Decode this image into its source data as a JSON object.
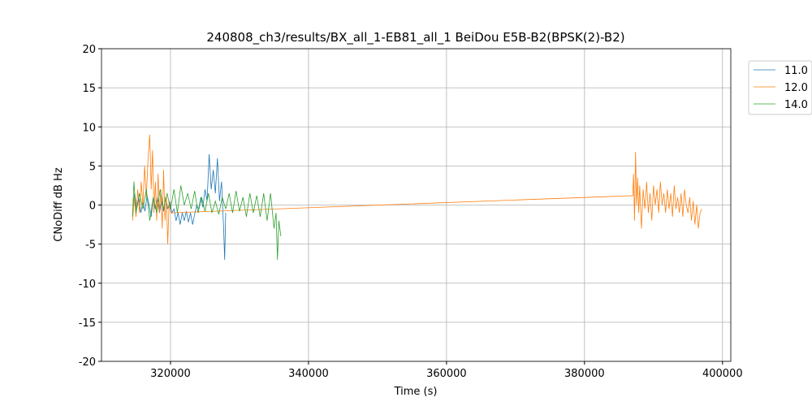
{
  "chart_data": {
    "type": "line",
    "title": "240808_ch3/results/BX_all_1-EB81_all_1 BeiDou E5B-B2(BPSK(2)-B2)",
    "xlabel": "Time (s)",
    "ylabel": "CNoDiff dB Hz",
    "xlim": [
      310000,
      401200
    ],
    "ylim": [
      -20,
      20
    ],
    "xticks": [
      320000,
      340000,
      360000,
      380000,
      400000
    ],
    "yticks": [
      -20,
      -15,
      -10,
      -5,
      0,
      5,
      10,
      15,
      20
    ],
    "grid": true,
    "legend": "outside upper right",
    "series": [
      {
        "name": "11.0",
        "color": "#1f77b4",
        "x": [
          314500,
          314800,
          315100,
          315400,
          315700,
          316000,
          316300,
          316600,
          316900,
          317200,
          317500,
          317800,
          318100,
          318400,
          318700,
          319000,
          319300,
          319600,
          319900,
          320200,
          320500,
          320800,
          321100,
          321400,
          321700,
          322000,
          322300,
          322600,
          322900,
          323200,
          323500,
          323800,
          324100,
          324400,
          324700,
          325000,
          325300,
          325600,
          325900,
          326200,
          326500,
          326800,
          327100,
          327400,
          327700,
          327850,
          328000
        ],
        "values": [
          -1,
          1.5,
          -0.5,
          1,
          -1,
          0.5,
          -0.8,
          1.2,
          0,
          -1.5,
          0.8,
          -0.5,
          1,
          -1,
          0.5,
          -0.8,
          1,
          -0.5,
          0.3,
          -1,
          -0.5,
          -2,
          -1,
          -2.5,
          -1,
          -2,
          -0.8,
          -2.2,
          -1,
          -2.5,
          -1.2,
          0,
          -0.5,
          1,
          -0.3,
          2,
          0.5,
          6.5,
          2,
          4.5,
          1.5,
          6,
          0.5,
          3,
          -3,
          -7,
          -1
        ]
      },
      {
        "name": "12.0",
        "color": "#ff7f0e",
        "x": [
          314500,
          314750,
          315000,
          315250,
          315500,
          315750,
          316000,
          316250,
          316500,
          316750,
          317000,
          317200,
          317400,
          317600,
          317800,
          318000,
          318200,
          318400,
          318600,
          318800,
          319000,
          319200,
          319400,
          319600,
          319800,
          320000,
          387000,
          387100,
          387250,
          387400,
          387550,
          387700,
          387850,
          388000,
          388250,
          388500,
          388750,
          389000,
          389250,
          389500,
          389750,
          390000,
          390250,
          390500,
          390750,
          391000,
          391250,
          391500,
          391750,
          392000,
          392250,
          392500,
          392750,
          393000,
          393250,
          393500,
          393750,
          394000,
          394250,
          394500,
          394750,
          395000,
          395250,
          395500,
          395750,
          396000,
          396250,
          396500,
          396750,
          397000
        ],
        "values": [
          -2,
          1,
          -1.5,
          2,
          -1,
          3,
          0,
          5,
          1,
          6,
          9,
          2,
          7,
          -1,
          3,
          -2,
          4,
          -1,
          2,
          -3,
          4.5,
          -2,
          1,
          -5,
          0.5,
          -1,
          1.2,
          4,
          -2,
          6.8,
          0,
          3.5,
          -1,
          2.5,
          -3,
          2,
          -0.5,
          3,
          -1,
          1.5,
          -2,
          2.5,
          0,
          2,
          -1,
          3,
          0,
          1.5,
          -1,
          2,
          -0.5,
          1.5,
          -1.5,
          2.5,
          -0.5,
          1,
          -1,
          1.5,
          -1.5,
          2,
          0,
          -1,
          1,
          -2,
          0.5,
          -2.5,
          0,
          -3,
          -1,
          -0.5
        ]
      },
      {
        "name": "14.0",
        "color": "#2ca02c",
        "x": [
          314500,
          314700,
          315000,
          315500,
          316000,
          316500,
          317000,
          317500,
          318000,
          318500,
          319000,
          319500,
          320000,
          320500,
          321000,
          321500,
          322000,
          322500,
          323000,
          323500,
          324000,
          324500,
          325000,
          325500,
          326000,
          326500,
          327000,
          327500,
          328000,
          328500,
          329000,
          329500,
          330000,
          330500,
          331000,
          331500,
          332000,
          332500,
          333000,
          333500,
          334000,
          334500,
          335000,
          335300,
          335500,
          335700,
          336000
        ],
        "values": [
          -1.5,
          3,
          -1,
          1.5,
          -0.5,
          2,
          -2,
          1,
          -1,
          2,
          -0.5,
          1.5,
          -0.5,
          2,
          -1,
          2.5,
          0,
          1.5,
          -0.5,
          1.8,
          -1,
          1,
          -0.8,
          1.5,
          -1,
          0.5,
          -1.2,
          1,
          -0.5,
          1.5,
          -1,
          1.8,
          -0.8,
          1,
          -1.5,
          1.5,
          -1,
          1.2,
          -1.5,
          1.5,
          -2,
          1.5,
          -3,
          -1,
          -7,
          -2,
          -4
        ]
      }
    ]
  }
}
